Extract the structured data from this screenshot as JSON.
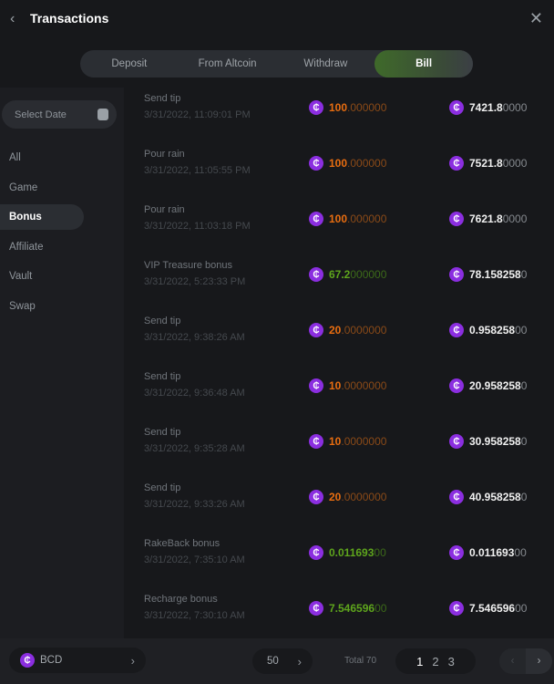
{
  "header": {
    "title": "Transactions",
    "back_icon": "chevron-left-icon",
    "close_icon": "close-icon"
  },
  "tabs": [
    {
      "label": "Deposit"
    },
    {
      "label": "From Altcoin"
    },
    {
      "label": "Withdraw"
    },
    {
      "label": "Bill",
      "active": true
    }
  ],
  "sidebar": {
    "date_placeholder": "Select Date",
    "items": [
      {
        "label": "All"
      },
      {
        "label": "Game"
      },
      {
        "label": "Bonus",
        "active": true
      },
      {
        "label": "Affiliate"
      },
      {
        "label": "Vault"
      },
      {
        "label": "Swap"
      }
    ]
  },
  "colors": {
    "accent": "#3f6a2a",
    "coin": "#8b2ee0",
    "negative": "#e86d10",
    "positive": "#5ea51c"
  },
  "rows": [
    {
      "title": "Send tip",
      "date": "3/31/2022, 11:09:01 PM",
      "type": "orange",
      "amount_main": "100",
      "amount_tail": ".000000",
      "balance_main": "7421.8",
      "balance_tail": "0000"
    },
    {
      "title": "Pour rain",
      "date": "3/31/2022, 11:05:55 PM",
      "type": "orange",
      "amount_main": "100",
      "amount_tail": ".000000",
      "balance_main": "7521.8",
      "balance_tail": "0000"
    },
    {
      "title": "Pour rain",
      "date": "3/31/2022, 11:03:18 PM",
      "type": "orange",
      "amount_main": "100",
      "amount_tail": ".000000",
      "balance_main": "7621.8",
      "balance_tail": "0000"
    },
    {
      "title": "VIP Treasure bonus",
      "date": "3/31/2022, 5:23:33 PM",
      "type": "green",
      "amount_main": "67.2",
      "amount_tail": "000000",
      "balance_main": "78.158258",
      "balance_tail": "0"
    },
    {
      "title": "Send tip",
      "date": "3/31/2022, 9:38:26 AM",
      "type": "orange",
      "amount_main": "20",
      "amount_tail": ".0000000",
      "balance_main": "0.958258",
      "balance_tail": "00"
    },
    {
      "title": "Send tip",
      "date": "3/31/2022, 9:36:48 AM",
      "type": "orange",
      "amount_main": "10",
      "amount_tail": ".0000000",
      "balance_main": "20.958258",
      "balance_tail": "0"
    },
    {
      "title": "Send tip",
      "date": "3/31/2022, 9:35:28 AM",
      "type": "orange",
      "amount_main": "10",
      "amount_tail": ".0000000",
      "balance_main": "30.958258",
      "balance_tail": "0"
    },
    {
      "title": "Send tip",
      "date": "3/31/2022, 9:33:26 AM",
      "type": "orange",
      "amount_main": "20",
      "amount_tail": ".0000000",
      "balance_main": "40.958258",
      "balance_tail": "0"
    },
    {
      "title": "RakeBack bonus",
      "date": "3/31/2022, 7:35:10 AM",
      "type": "green",
      "amount_main": "0.011693",
      "amount_tail": "00",
      "balance_main": "0.011693",
      "balance_tail": "00"
    },
    {
      "title": "Recharge bonus",
      "date": "3/31/2022, 7:30:10 AM",
      "type": "green",
      "amount_main": "7.546596",
      "amount_tail": "00",
      "balance_main": "7.546596",
      "balance_tail": "00"
    }
  ],
  "footer": {
    "currency": "BCD",
    "page_size": "50",
    "total": "Total 70",
    "pages": [
      "1",
      "2",
      "3"
    ],
    "current_page": "1"
  }
}
